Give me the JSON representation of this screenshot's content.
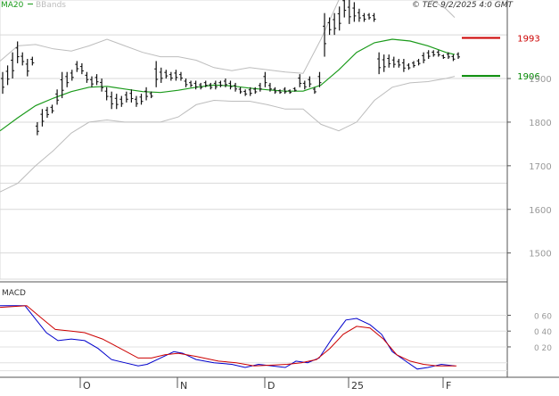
{
  "legend": {
    "ma_label": "MA20",
    "bb_label": "BBands",
    "ma_color": "#1a9a1a",
    "bb_color": "#bdbdbd"
  },
  "source_label": "© TEC 9/2/2025 4:0 GMT",
  "chart_data": [
    {
      "type": "ohlc",
      "series": [
        {
          "name": "MA20",
          "color": "#1a9a1a"
        },
        {
          "name": "BBands",
          "color": "#bdbdbd"
        }
      ],
      "ylim": [
        1440,
        2080
      ],
      "y_ticks": [
        1500,
        1600,
        1700,
        1800,
        1900
      ],
      "x_tick_labels": [
        "O",
        "N",
        "D",
        "25",
        "F"
      ],
      "grid": true,
      "bars": [
        [
          1915,
          1865
        ],
        [
          1930,
          1885
        ],
        [
          1960,
          1900
        ],
        [
          1985,
          1935
        ],
        [
          1960,
          1930
        ],
        [
          1945,
          1905
        ],
        [
          1950,
          1930
        ],
        [
          1800,
          1770
        ],
        [
          1830,
          1790
        ],
        [
          1835,
          1810
        ],
        [
          1840,
          1820
        ],
        [
          1875,
          1840
        ],
        [
          1915,
          1855
        ],
        [
          1915,
          1880
        ],
        [
          1920,
          1895
        ],
        [
          1940,
          1915
        ],
        [
          1935,
          1910
        ],
        [
          1915,
          1890
        ],
        [
          1905,
          1880
        ],
        [
          1910,
          1885
        ],
        [
          1900,
          1870
        ],
        [
          1880,
          1850
        ],
        [
          1870,
          1830
        ],
        [
          1865,
          1830
        ],
        [
          1860,
          1835
        ],
        [
          1870,
          1845
        ],
        [
          1875,
          1845
        ],
        [
          1860,
          1835
        ],
        [
          1865,
          1840
        ],
        [
          1880,
          1850
        ],
        [
          1870,
          1855
        ],
        [
          1940,
          1880
        ],
        [
          1925,
          1890
        ],
        [
          1920,
          1900
        ],
        [
          1915,
          1895
        ],
        [
          1920,
          1895
        ],
        [
          1915,
          1895
        ],
        [
          1900,
          1880
        ],
        [
          1895,
          1880
        ],
        [
          1895,
          1875
        ],
        [
          1890,
          1875
        ],
        [
          1895,
          1880
        ],
        [
          1890,
          1875
        ],
        [
          1895,
          1875
        ],
        [
          1895,
          1880
        ],
        [
          1900,
          1880
        ],
        [
          1895,
          1875
        ],
        [
          1890,
          1870
        ],
        [
          1880,
          1865
        ],
        [
          1875,
          1860
        ],
        [
          1880,
          1860
        ],
        [
          1880,
          1865
        ],
        [
          1890,
          1870
        ],
        [
          1915,
          1880
        ],
        [
          1890,
          1870
        ],
        [
          1880,
          1865
        ],
        [
          1875,
          1865
        ],
        [
          1880,
          1865
        ],
        [
          1875,
          1865
        ],
        [
          1880,
          1870
        ],
        [
          1910,
          1880
        ],
        [
          1895,
          1875
        ],
        [
          1905,
          1880
        ],
        [
          1880,
          1865
        ],
        [
          1915,
          1880
        ],
        [
          2050,
          1950
        ],
        [
          2040,
          2000
        ],
        [
          2050,
          2000
        ],
        [
          2065,
          2010
        ],
        [
          2095,
          2040
        ],
        [
          2080,
          2025
        ],
        [
          2075,
          2030
        ],
        [
          2060,
          2030
        ],
        [
          2050,
          2030
        ],
        [
          2050,
          2035
        ],
        [
          2050,
          2030
        ],
        [
          1960,
          1910
        ],
        [
          1955,
          1915
        ],
        [
          1955,
          1925
        ],
        [
          1950,
          1925
        ],
        [
          1945,
          1925
        ],
        [
          1945,
          1915
        ],
        [
          1935,
          1920
        ],
        [
          1940,
          1925
        ],
        [
          1945,
          1930
        ],
        [
          1960,
          1935
        ],
        [
          1965,
          1945
        ],
        [
          1965,
          1950
        ],
        [
          1965,
          1950
        ],
        [
          1955,
          1945
        ],
        [
          1960,
          1945
        ],
        [
          1955,
          1940
        ],
        [
          1960,
          1945
        ]
      ],
      "ma20": [
        [
          0,
          1780
        ],
        [
          20,
          1810
        ],
        [
          40,
          1838
        ],
        [
          60,
          1855
        ],
        [
          80,
          1870
        ],
        [
          100,
          1880
        ],
        [
          120,
          1882
        ],
        [
          140,
          1876
        ],
        [
          160,
          1870
        ],
        [
          180,
          1868
        ],
        [
          200,
          1873
        ],
        [
          220,
          1880
        ],
        [
          240,
          1885
        ],
        [
          260,
          1883
        ],
        [
          280,
          1878
        ],
        [
          300,
          1874
        ],
        [
          320,
          1871
        ],
        [
          340,
          1871
        ],
        [
          360,
          1885
        ],
        [
          380,
          1920
        ],
        [
          400,
          1960
        ],
        [
          420,
          1982
        ],
        [
          440,
          1990
        ],
        [
          460,
          1986
        ],
        [
          480,
          1975
        ],
        [
          500,
          1960
        ],
        [
          510,
          1955
        ]
      ],
      "bb_upper": [
        [
          0,
          1940
        ],
        [
          20,
          1975
        ],
        [
          40,
          1978
        ],
        [
          60,
          1968
        ],
        [
          80,
          1963
        ],
        [
          100,
          1975
        ],
        [
          120,
          1990
        ],
        [
          140,
          1975
        ],
        [
          160,
          1960
        ],
        [
          180,
          1950
        ],
        [
          200,
          1950
        ],
        [
          220,
          1942
        ],
        [
          240,
          1925
        ],
        [
          260,
          1918
        ],
        [
          280,
          1925
        ],
        [
          300,
          1920
        ],
        [
          320,
          1915
        ],
        [
          340,
          1912
        ],
        [
          360,
          1990
        ],
        [
          380,
          2080
        ],
        [
          400,
          2110
        ],
        [
          420,
          2120
        ],
        [
          440,
          2110
        ],
        [
          460,
          2105
        ],
        [
          480,
          2085
        ],
        [
          500,
          2060
        ],
        [
          510,
          2040
        ]
      ],
      "bb_lower": [
        [
          0,
          1640
        ],
        [
          20,
          1660
        ],
        [
          40,
          1700
        ],
        [
          60,
          1735
        ],
        [
          80,
          1775
        ],
        [
          100,
          1800
        ],
        [
          120,
          1805
        ],
        [
          140,
          1800
        ],
        [
          160,
          1800
        ],
        [
          180,
          1800
        ],
        [
          200,
          1812
        ],
        [
          220,
          1840
        ],
        [
          240,
          1850
        ],
        [
          260,
          1848
        ],
        [
          280,
          1848
        ],
        [
          300,
          1840
        ],
        [
          320,
          1830
        ],
        [
          340,
          1830
        ],
        [
          360,
          1795
        ],
        [
          380,
          1780
        ],
        [
          400,
          1800
        ],
        [
          420,
          1850
        ],
        [
          440,
          1880
        ],
        [
          460,
          1890
        ],
        [
          480,
          1893
        ],
        [
          500,
          1900
        ],
        [
          510,
          1905
        ]
      ],
      "levels": [
        {
          "label": "1993",
          "value": 1993,
          "color": "#cc0000"
        },
        {
          "label": "1906",
          "value": 1906,
          "color": "#008800"
        }
      ]
    },
    {
      "type": "line",
      "ylim": [
        -0.15,
        1.0
      ],
      "y_ticks": [
        0.2,
        0.4,
        0.6
      ],
      "y_tick_labels": [
        "0 20",
        "0 40",
        "0 60"
      ],
      "grid": true,
      "series": [
        {
          "name": "MACD",
          "color": "#0000cc",
          "points": [
            [
              0,
              0.72
            ],
            [
              28,
              0.72
            ],
            [
              40,
              0.55
            ],
            [
              52,
              0.38
            ],
            [
              65,
              0.28
            ],
            [
              80,
              0.3
            ],
            [
              95,
              0.28
            ],
            [
              110,
              0.18
            ],
            [
              125,
              0.04
            ],
            [
              140,
              0.0
            ],
            [
              155,
              -0.04
            ],
            [
              165,
              -0.02
            ],
            [
              180,
              0.06
            ],
            [
              195,
              0.14
            ],
            [
              205,
              0.12
            ],
            [
              220,
              0.04
            ],
            [
              240,
              0.0
            ],
            [
              260,
              -0.02
            ],
            [
              275,
              -0.06
            ],
            [
              290,
              -0.02
            ],
            [
              305,
              -0.04
            ],
            [
              320,
              -0.06
            ],
            [
              332,
              0.02
            ],
            [
              345,
              0.0
            ],
            [
              358,
              0.06
            ],
            [
              372,
              0.3
            ],
            [
              388,
              0.54
            ],
            [
              400,
              0.56
            ],
            [
              415,
              0.48
            ],
            [
              428,
              0.36
            ],
            [
              440,
              0.14
            ],
            [
              455,
              0.02
            ],
            [
              468,
              -0.08
            ],
            [
              480,
              -0.06
            ],
            [
              495,
              -0.02
            ],
            [
              510,
              -0.04
            ]
          ]
        },
        {
          "name": "Signal",
          "color": "#cc0000",
          "points": [
            [
              0,
              0.7
            ],
            [
              30,
              0.72
            ],
            [
              48,
              0.55
            ],
            [
              62,
              0.42
            ],
            [
              80,
              0.4
            ],
            [
              95,
              0.38
            ],
            [
              115,
              0.3
            ],
            [
              135,
              0.18
            ],
            [
              155,
              0.06
            ],
            [
              170,
              0.06
            ],
            [
              185,
              0.1
            ],
            [
              200,
              0.12
            ],
            [
              220,
              0.08
            ],
            [
              245,
              0.02
            ],
            [
              265,
              0.0
            ],
            [
              285,
              -0.04
            ],
            [
              305,
              -0.03
            ],
            [
              322,
              -0.02
            ],
            [
              338,
              0.0
            ],
            [
              355,
              0.04
            ],
            [
              370,
              0.18
            ],
            [
              385,
              0.36
            ],
            [
              400,
              0.46
            ],
            [
              415,
              0.44
            ],
            [
              430,
              0.3
            ],
            [
              445,
              0.1
            ],
            [
              460,
              0.02
            ],
            [
              475,
              -0.02
            ],
            [
              490,
              -0.04
            ],
            [
              502,
              -0.04
            ],
            [
              512,
              -0.04
            ]
          ]
        }
      ],
      "labels": {
        "title": "MACD",
        "x_tick_labels": [
          "O",
          "N",
          "D",
          "25",
          "F"
        ]
      }
    }
  ]
}
